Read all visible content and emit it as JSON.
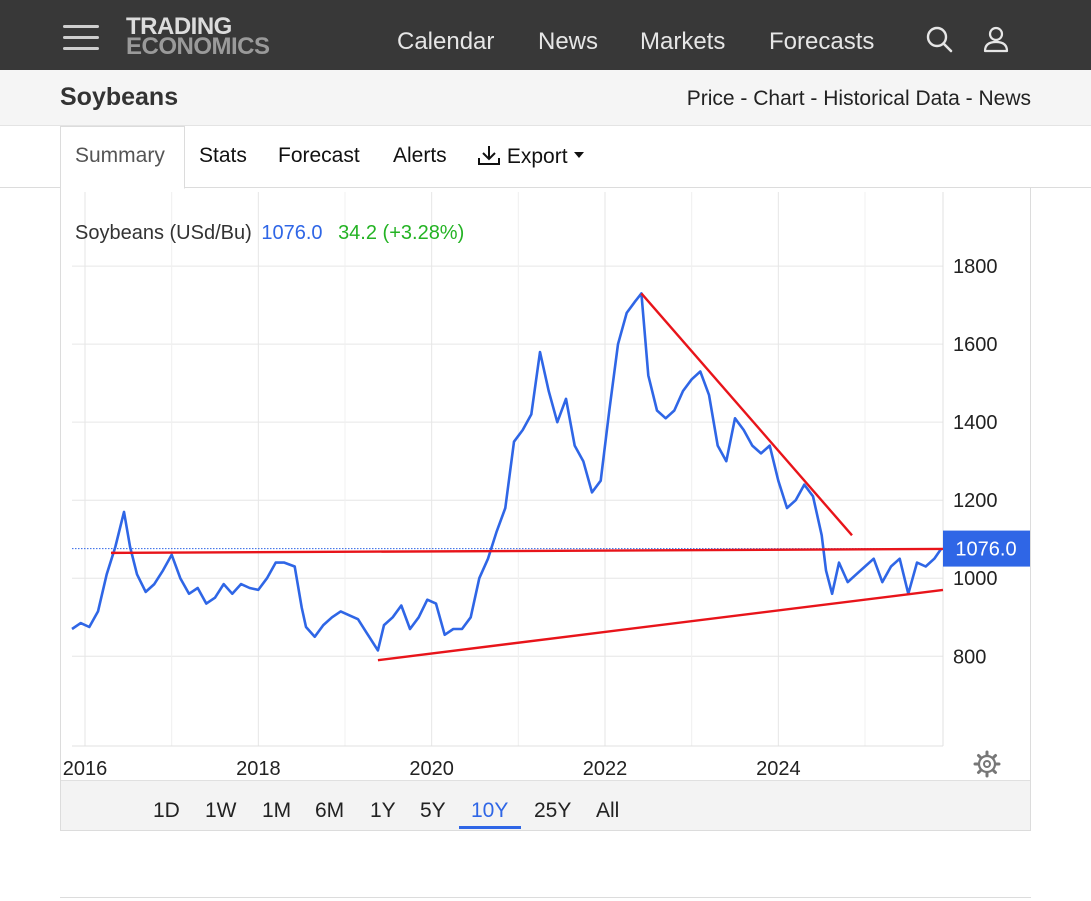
{
  "header": {
    "logo_line1": "TRADING",
    "logo_line2": "ECONOMICS",
    "nav": [
      "Calendar",
      "News",
      "Markets",
      "Forecasts"
    ],
    "icons": [
      "menu-icon",
      "search-icon",
      "user-icon"
    ]
  },
  "subheader": {
    "title": "Soybeans",
    "links": [
      "Price",
      "Chart",
      "Historical Data",
      "News"
    ],
    "separator": " - "
  },
  "tabs": {
    "summary": "Summary",
    "stats": "Stats",
    "forecast": "Forecast",
    "alerts": "Alerts",
    "export": "Export"
  },
  "legend": {
    "name": "Soybeans (USd/Bu)",
    "value": "1076.0",
    "change": "34.2 (+3.28%)"
  },
  "ranges": [
    "1D",
    "1W",
    "1M",
    "6M",
    "1Y",
    "5Y",
    "10Y",
    "25Y",
    "All"
  ],
  "active_range": "10Y",
  "colors": {
    "line": "#2f66e6",
    "trendline": "#e8141a",
    "change_up": "#24b324",
    "header_bg": "#383838"
  },
  "chart_data": {
    "type": "line",
    "title": "",
    "xlabel": "",
    "ylabel": "",
    "ylim": [
      570,
      1990
    ],
    "xlim": [
      2015.85,
      2025.9
    ],
    "y_ticks": [
      800,
      1000,
      1200,
      1400,
      1600,
      1800
    ],
    "x_ticks": [
      2016,
      2018,
      2020,
      2022,
      2024
    ],
    "x_tick_labels": [
      "2016",
      "2018",
      "2020",
      "2022",
      "2024"
    ],
    "last_value": 1076.0,
    "last_value_label": "1076.0",
    "grid": true,
    "series": [
      {
        "name": "Soybeans (USd/Bu)",
        "x": [
          2015.85,
          2015.95,
          2016.05,
          2016.15,
          2016.25,
          2016.35,
          2016.45,
          2016.52,
          2016.6,
          2016.7,
          2016.8,
          2016.9,
          2017.0,
          2017.1,
          2017.2,
          2017.3,
          2017.4,
          2017.5,
          2017.6,
          2017.7,
          2017.8,
          2017.9,
          2018.0,
          2018.1,
          2018.2,
          2018.3,
          2018.42,
          2018.5,
          2018.55,
          2018.65,
          2018.75,
          2018.85,
          2018.95,
          2019.05,
          2019.15,
          2019.25,
          2019.38,
          2019.45,
          2019.55,
          2019.65,
          2019.75,
          2019.85,
          2019.95,
          2020.05,
          2020.15,
          2020.25,
          2020.35,
          2020.45,
          2020.55,
          2020.65,
          2020.75,
          2020.85,
          2020.95,
          2021.05,
          2021.15,
          2021.25,
          2021.35,
          2021.45,
          2021.55,
          2021.65,
          2021.75,
          2021.85,
          2021.95,
          2022.05,
          2022.15,
          2022.25,
          2022.35,
          2022.42,
          2022.5,
          2022.6,
          2022.7,
          2022.8,
          2022.9,
          2023.0,
          2023.1,
          2023.2,
          2023.3,
          2023.4,
          2023.5,
          2023.6,
          2023.7,
          2023.8,
          2023.9,
          2024.0,
          2024.1,
          2024.2,
          2024.3,
          2024.4,
          2024.5,
          2024.55,
          2024.62,
          2024.7,
          2024.8,
          2024.9,
          2025.0,
          2025.1,
          2025.2,
          2025.3,
          2025.4,
          2025.5,
          2025.6,
          2025.7,
          2025.8,
          2025.88
        ],
        "values": [
          870,
          885,
          875,
          915,
          1010,
          1080,
          1170,
          1080,
          1010,
          965,
          985,
          1020,
          1060,
          1000,
          960,
          975,
          935,
          950,
          985,
          960,
          985,
          975,
          970,
          1000,
          1040,
          1040,
          1030,
          925,
          875,
          850,
          880,
          900,
          915,
          905,
          895,
          860,
          815,
          880,
          900,
          930,
          870,
          900,
          945,
          935,
          855,
          870,
          870,
          900,
          1000,
          1050,
          1120,
          1180,
          1350,
          1380,
          1420,
          1580,
          1480,
          1400,
          1460,
          1340,
          1300,
          1220,
          1250,
          1430,
          1600,
          1680,
          1710,
          1730,
          1520,
          1430,
          1410,
          1430,
          1480,
          1510,
          1530,
          1470,
          1340,
          1300,
          1410,
          1380,
          1340,
          1320,
          1340,
          1250,
          1180,
          1200,
          1240,
          1210,
          1110,
          1020,
          960,
          1040,
          990,
          1010,
          1030,
          1050,
          990,
          1030,
          1050,
          960,
          1040,
          1030,
          1050,
          1076
        ]
      }
    ],
    "trendlines": [
      {
        "label": "",
        "x": [
          2022.42,
          2024.85
        ],
        "y": [
          1730,
          1110
        ]
      },
      {
        "label": "",
        "x": [
          2016.3,
          2025.9
        ],
        "y": [
          1065,
          1075
        ]
      },
      {
        "label": "",
        "x": [
          2019.38,
          2025.9
        ],
        "y": [
          790,
          970
        ]
      }
    ]
  }
}
